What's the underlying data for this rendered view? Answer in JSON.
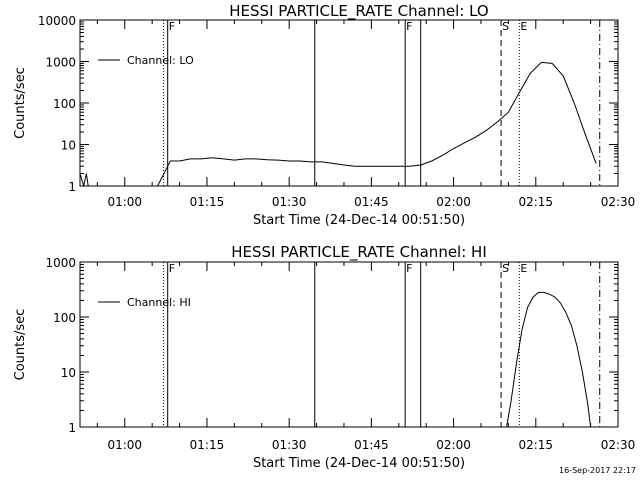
{
  "chart_data": [
    {
      "type": "line",
      "title": "HESSI PARTICLE_RATE Channel: LO",
      "xlabel": "Start Time (24-Dec-14 00:51:50)",
      "ylabel": "Counts/sec",
      "yscale": "log",
      "ylim": [
        1,
        10000
      ],
      "xlim": [
        "00:51:50",
        "02:30:00"
      ],
      "x_ticks": [
        "01:00",
        "01:15",
        "01:30",
        "01:45",
        "02:00",
        "02:15",
        "02:30"
      ],
      "y_ticks": [
        "1",
        "10",
        "100",
        "1000",
        "10000"
      ],
      "legend": {
        "entry": "Channel: LO",
        "position": "top-left"
      },
      "series": [
        {
          "name": "Channel: LO",
          "x": [
            "00:51:50",
            "00:52:30",
            "00:53:00",
            "00:53:20",
            "00:54:00",
            "00:55:00",
            "00:56:30",
            "00:57:30",
            "00:58:30",
            "00:59:30",
            "01:00:30",
            "01:01:30",
            "01:02:30",
            "01:03:30",
            "01:05:00",
            "01:06:00",
            "01:07:10",
            "01:07:50",
            "01:08:20",
            "01:10:00",
            "01:12:00",
            "01:14:00",
            "01:16:00",
            "01:18:00",
            "01:20:00",
            "01:22:00",
            "01:24:00",
            "01:26:00",
            "01:28:00",
            "01:30:00",
            "01:32:00",
            "01:34:00",
            "01:36:00",
            "01:38:00",
            "01:40:00",
            "01:42:00",
            "01:44:00",
            "01:46:00",
            "01:48:00",
            "01:50:00",
            "01:52:00",
            "01:54:00",
            "01:56:00",
            "01:58:00",
            "02:00:00",
            "02:02:00",
            "02:04:00",
            "02:06:00",
            "02:08:00",
            "02:10:00",
            "02:12:00",
            "02:14:00",
            "02:16:00",
            "02:18:00",
            "02:20:00",
            "02:22:00",
            "02:24:00",
            "02:26:00"
          ],
          "y": [
            2,
            1,
            2,
            1,
            1,
            1,
            1,
            1,
            1,
            1,
            1,
            1,
            1,
            1,
            1,
            1,
            2,
            3,
            4,
            4,
            4.5,
            4.5,
            4.8,
            4.5,
            4.2,
            4.5,
            4.5,
            4.3,
            4.2,
            4.0,
            4.0,
            3.8,
            3.8,
            3.5,
            3.2,
            3.0,
            3.0,
            3.0,
            3.0,
            3.0,
            3.0,
            3.2,
            4,
            5.5,
            8,
            11,
            15,
            22,
            35,
            60,
            180,
            520,
            950,
            900,
            450,
            100,
            18,
            3.5
          ]
        }
      ],
      "markers": [
        {
          "time": "01:07:05",
          "style": "dotted",
          "label": ""
        },
        {
          "time": "01:07:50",
          "style": "solid",
          "label": "F"
        },
        {
          "time": "01:34:40",
          "style": "solid",
          "label": ""
        },
        {
          "time": "01:51:10",
          "style": "solid",
          "label": "F"
        },
        {
          "time": "01:54:00",
          "style": "solid",
          "label": ""
        },
        {
          "time": "02:08:40",
          "style": "dashed",
          "label": "S"
        },
        {
          "time": "02:12:00",
          "style": "dotted",
          "label": "E"
        },
        {
          "time": "02:26:40",
          "style": "dash-dot",
          "label": ""
        }
      ]
    },
    {
      "type": "line",
      "title": "HESSI PARTICLE_RATE Channel: HI",
      "xlabel": "Start Time (24-Dec-14 00:51:50)",
      "ylabel": "Counts/sec",
      "yscale": "log",
      "ylim": [
        1,
        1000
      ],
      "xlim": [
        "00:51:50",
        "02:30:00"
      ],
      "x_ticks": [
        "01:00",
        "01:15",
        "01:30",
        "01:45",
        "02:00",
        "02:15",
        "02:30"
      ],
      "y_ticks": [
        "1",
        "10",
        "100",
        "1000"
      ],
      "legend": {
        "entry": "Channel: HI",
        "position": "top-left"
      },
      "series": [
        {
          "name": "Channel: HI",
          "x": [
            "02:09:40",
            "02:10:30",
            "02:11:30",
            "02:12:30",
            "02:13:30",
            "02:14:30",
            "02:15:30",
            "02:16:30",
            "02:17:30",
            "02:18:30",
            "02:19:30",
            "02:20:30",
            "02:21:30",
            "02:22:30",
            "02:23:30",
            "02:24:30",
            "02:25:00"
          ],
          "y": [
            1,
            3,
            15,
            60,
            150,
            230,
            280,
            280,
            260,
            230,
            180,
            120,
            70,
            30,
            10,
            2.5,
            1
          ]
        }
      ],
      "markers": [
        {
          "time": "01:07:05",
          "style": "dotted",
          "label": ""
        },
        {
          "time": "01:07:50",
          "style": "solid",
          "label": "F"
        },
        {
          "time": "01:34:40",
          "style": "solid",
          "label": ""
        },
        {
          "time": "01:51:10",
          "style": "solid",
          "label": "F"
        },
        {
          "time": "01:54:00",
          "style": "solid",
          "label": ""
        },
        {
          "time": "02:08:40",
          "style": "dashed",
          "label": "S"
        },
        {
          "time": "02:12:00",
          "style": "dotted",
          "label": "E"
        },
        {
          "time": "02:26:40",
          "style": "dash-dot",
          "label": ""
        }
      ]
    }
  ],
  "footer_date": "16-Sep-2017 22:17"
}
